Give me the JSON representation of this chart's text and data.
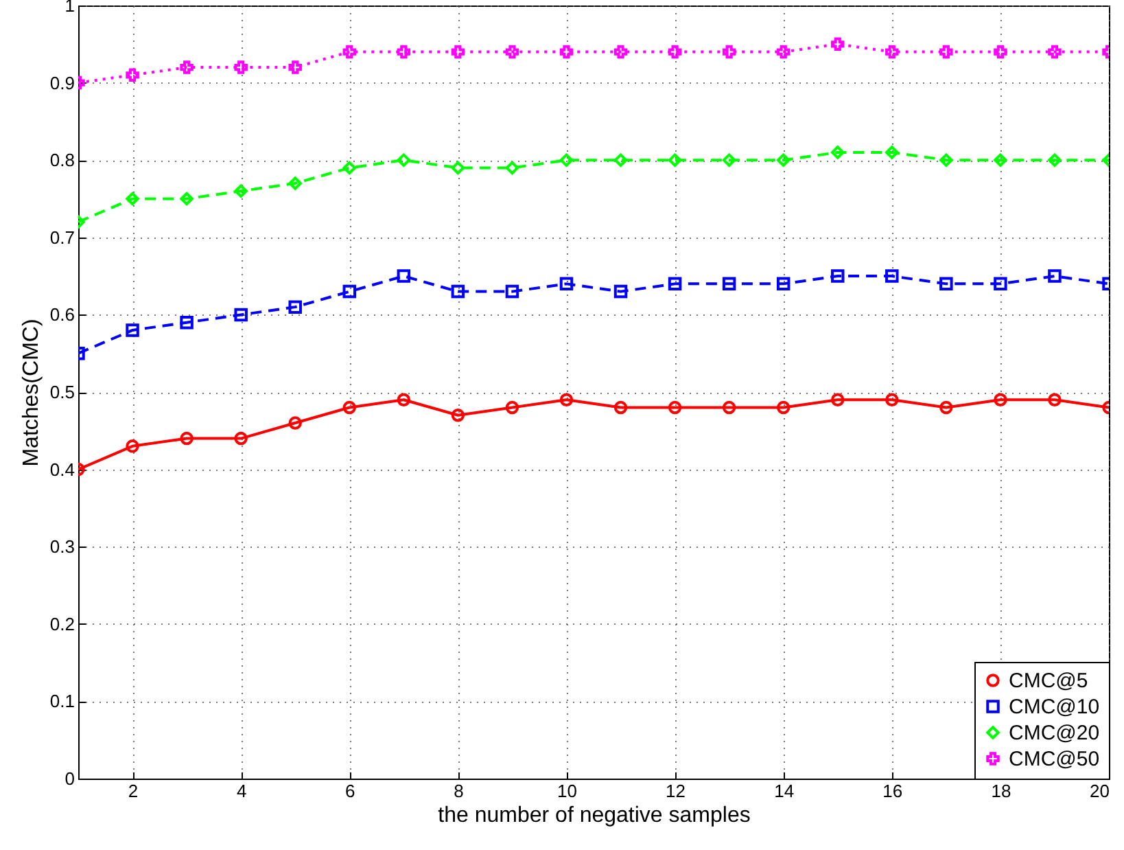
{
  "chart_data": {
    "type": "line",
    "xlabel": "the number of negative samples",
    "ylabel": "Matches(CMC)",
    "x": [
      1,
      2,
      3,
      4,
      5,
      6,
      7,
      8,
      9,
      10,
      11,
      12,
      13,
      14,
      15,
      16,
      17,
      18,
      19,
      20
    ],
    "series": [
      {
        "name": "CMC@5",
        "color": "#ff0000",
        "marker": "circle",
        "line_style": "solid",
        "values": [
          0.4,
          0.43,
          0.44,
          0.44,
          0.46,
          0.48,
          0.49,
          0.47,
          0.48,
          0.49,
          0.48,
          0.48,
          0.48,
          0.48,
          0.49,
          0.49,
          0.48,
          0.49,
          0.49,
          0.48
        ]
      },
      {
        "name": "CMC@10",
        "color": "#0000ff",
        "marker": "square",
        "line_style": "dashed",
        "values": [
          0.55,
          0.58,
          0.59,
          0.6,
          0.61,
          0.63,
          0.65,
          0.63,
          0.63,
          0.64,
          0.63,
          0.64,
          0.64,
          0.64,
          0.65,
          0.65,
          0.64,
          0.64,
          0.65,
          0.64
        ]
      },
      {
        "name": "CMC@20",
        "color": "#00ff00",
        "marker": "diamond",
        "line_style": "dashed",
        "values": [
          0.72,
          0.75,
          0.75,
          0.76,
          0.77,
          0.79,
          0.8,
          0.79,
          0.79,
          0.8,
          0.8,
          0.8,
          0.8,
          0.8,
          0.81,
          0.81,
          0.8,
          0.8,
          0.8,
          0.8
        ]
      },
      {
        "name": "CMC@50",
        "color": "#ff00ff",
        "marker": "cross",
        "line_style": "dotted",
        "values": [
          0.9,
          0.91,
          0.92,
          0.92,
          0.92,
          0.94,
          0.94,
          0.94,
          0.94,
          0.94,
          0.94,
          0.94,
          0.94,
          0.94,
          0.95,
          0.94,
          0.94,
          0.94,
          0.94,
          0.94
        ]
      }
    ],
    "xlim": [
      1,
      20
    ],
    "xticks": [
      2,
      4,
      6,
      8,
      10,
      12,
      14,
      16,
      18,
      20
    ],
    "ylim": [
      0,
      1
    ],
    "yticks": [
      0,
      0.1,
      0.2,
      0.3,
      0.4,
      0.5,
      0.6,
      0.7,
      0.8,
      0.9,
      1
    ],
    "grid": true,
    "legend": "bottom right"
  }
}
